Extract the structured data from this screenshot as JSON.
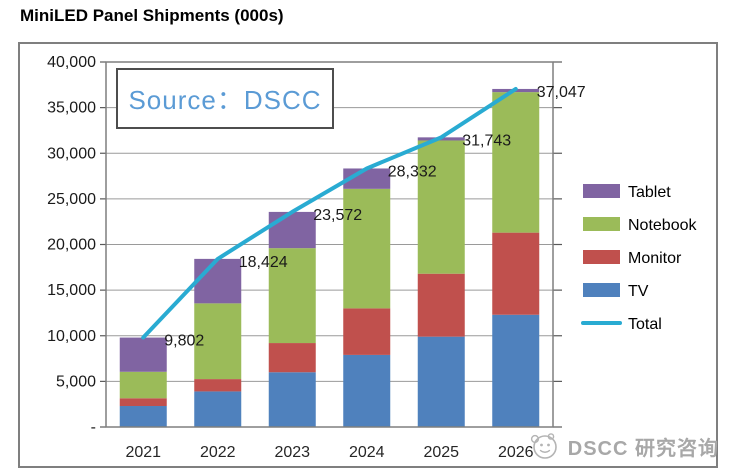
{
  "title": "MiniLED Panel Shipments (000s)",
  "source_box": {
    "text": "Source：DSCC"
  },
  "watermark": {
    "icon": "dscc-face-logo",
    "text": "DSCC 研究咨询"
  },
  "chart_data": {
    "type": "bar",
    "stacked": true,
    "title": "MiniLED Panel Shipments (000s)",
    "xlabel": "",
    "ylabel": "",
    "ylim": [
      0,
      40000
    ],
    "grid": true,
    "legend_position": "right",
    "categories": [
      "2021",
      "2022",
      "2023",
      "2024",
      "2025",
      "2026"
    ],
    "series": [
      {
        "name": "TV",
        "color": "#4F81BD",
        "values": [
          2300,
          3900,
          6000,
          7900,
          9900,
          12300
        ]
      },
      {
        "name": "Monitor",
        "color": "#C0504D",
        "values": [
          850,
          1350,
          3200,
          5100,
          6900,
          9000
        ]
      },
      {
        "name": "Notebook",
        "color": "#9BBB59",
        "values": [
          2900,
          8300,
          10400,
          13100,
          14600,
          15400
        ]
      },
      {
        "name": "Tablet",
        "color": "#8064A2",
        "values": [
          3752,
          4874,
          3972,
          2232,
          343,
          347
        ]
      }
    ],
    "line_series": {
      "name": "Total",
      "color": "#29ABD2",
      "values": [
        9802,
        18424,
        23572,
        28332,
        31743,
        37047
      ]
    },
    "total_labels": [
      "9,802",
      "18,424",
      "23,572",
      "28,332",
      "31,743",
      "37,047"
    ],
    "y_ticks": [
      {
        "value": 40000,
        "label": "40,000"
      },
      {
        "value": 35000,
        "label": "35,000"
      },
      {
        "value": 30000,
        "label": "30,000"
      },
      {
        "value": 25000,
        "label": "25,000"
      },
      {
        "value": 20000,
        "label": "20,000"
      },
      {
        "value": 15000,
        "label": "15,000"
      },
      {
        "value": 10000,
        "label": "10,000"
      },
      {
        "value": 5000,
        "label": "5,000"
      },
      {
        "value": 0,
        "label": "-"
      }
    ],
    "legend": [
      {
        "label": "Tablet",
        "color": "#8064A2",
        "type": "box"
      },
      {
        "label": "Notebook",
        "color": "#9BBB59",
        "type": "box"
      },
      {
        "label": "Monitor",
        "color": "#C0504D",
        "type": "box"
      },
      {
        "label": "TV",
        "color": "#4F81BD",
        "type": "box"
      },
      {
        "label": "Total",
        "color": "#29ABD2",
        "type": "line"
      }
    ]
  }
}
